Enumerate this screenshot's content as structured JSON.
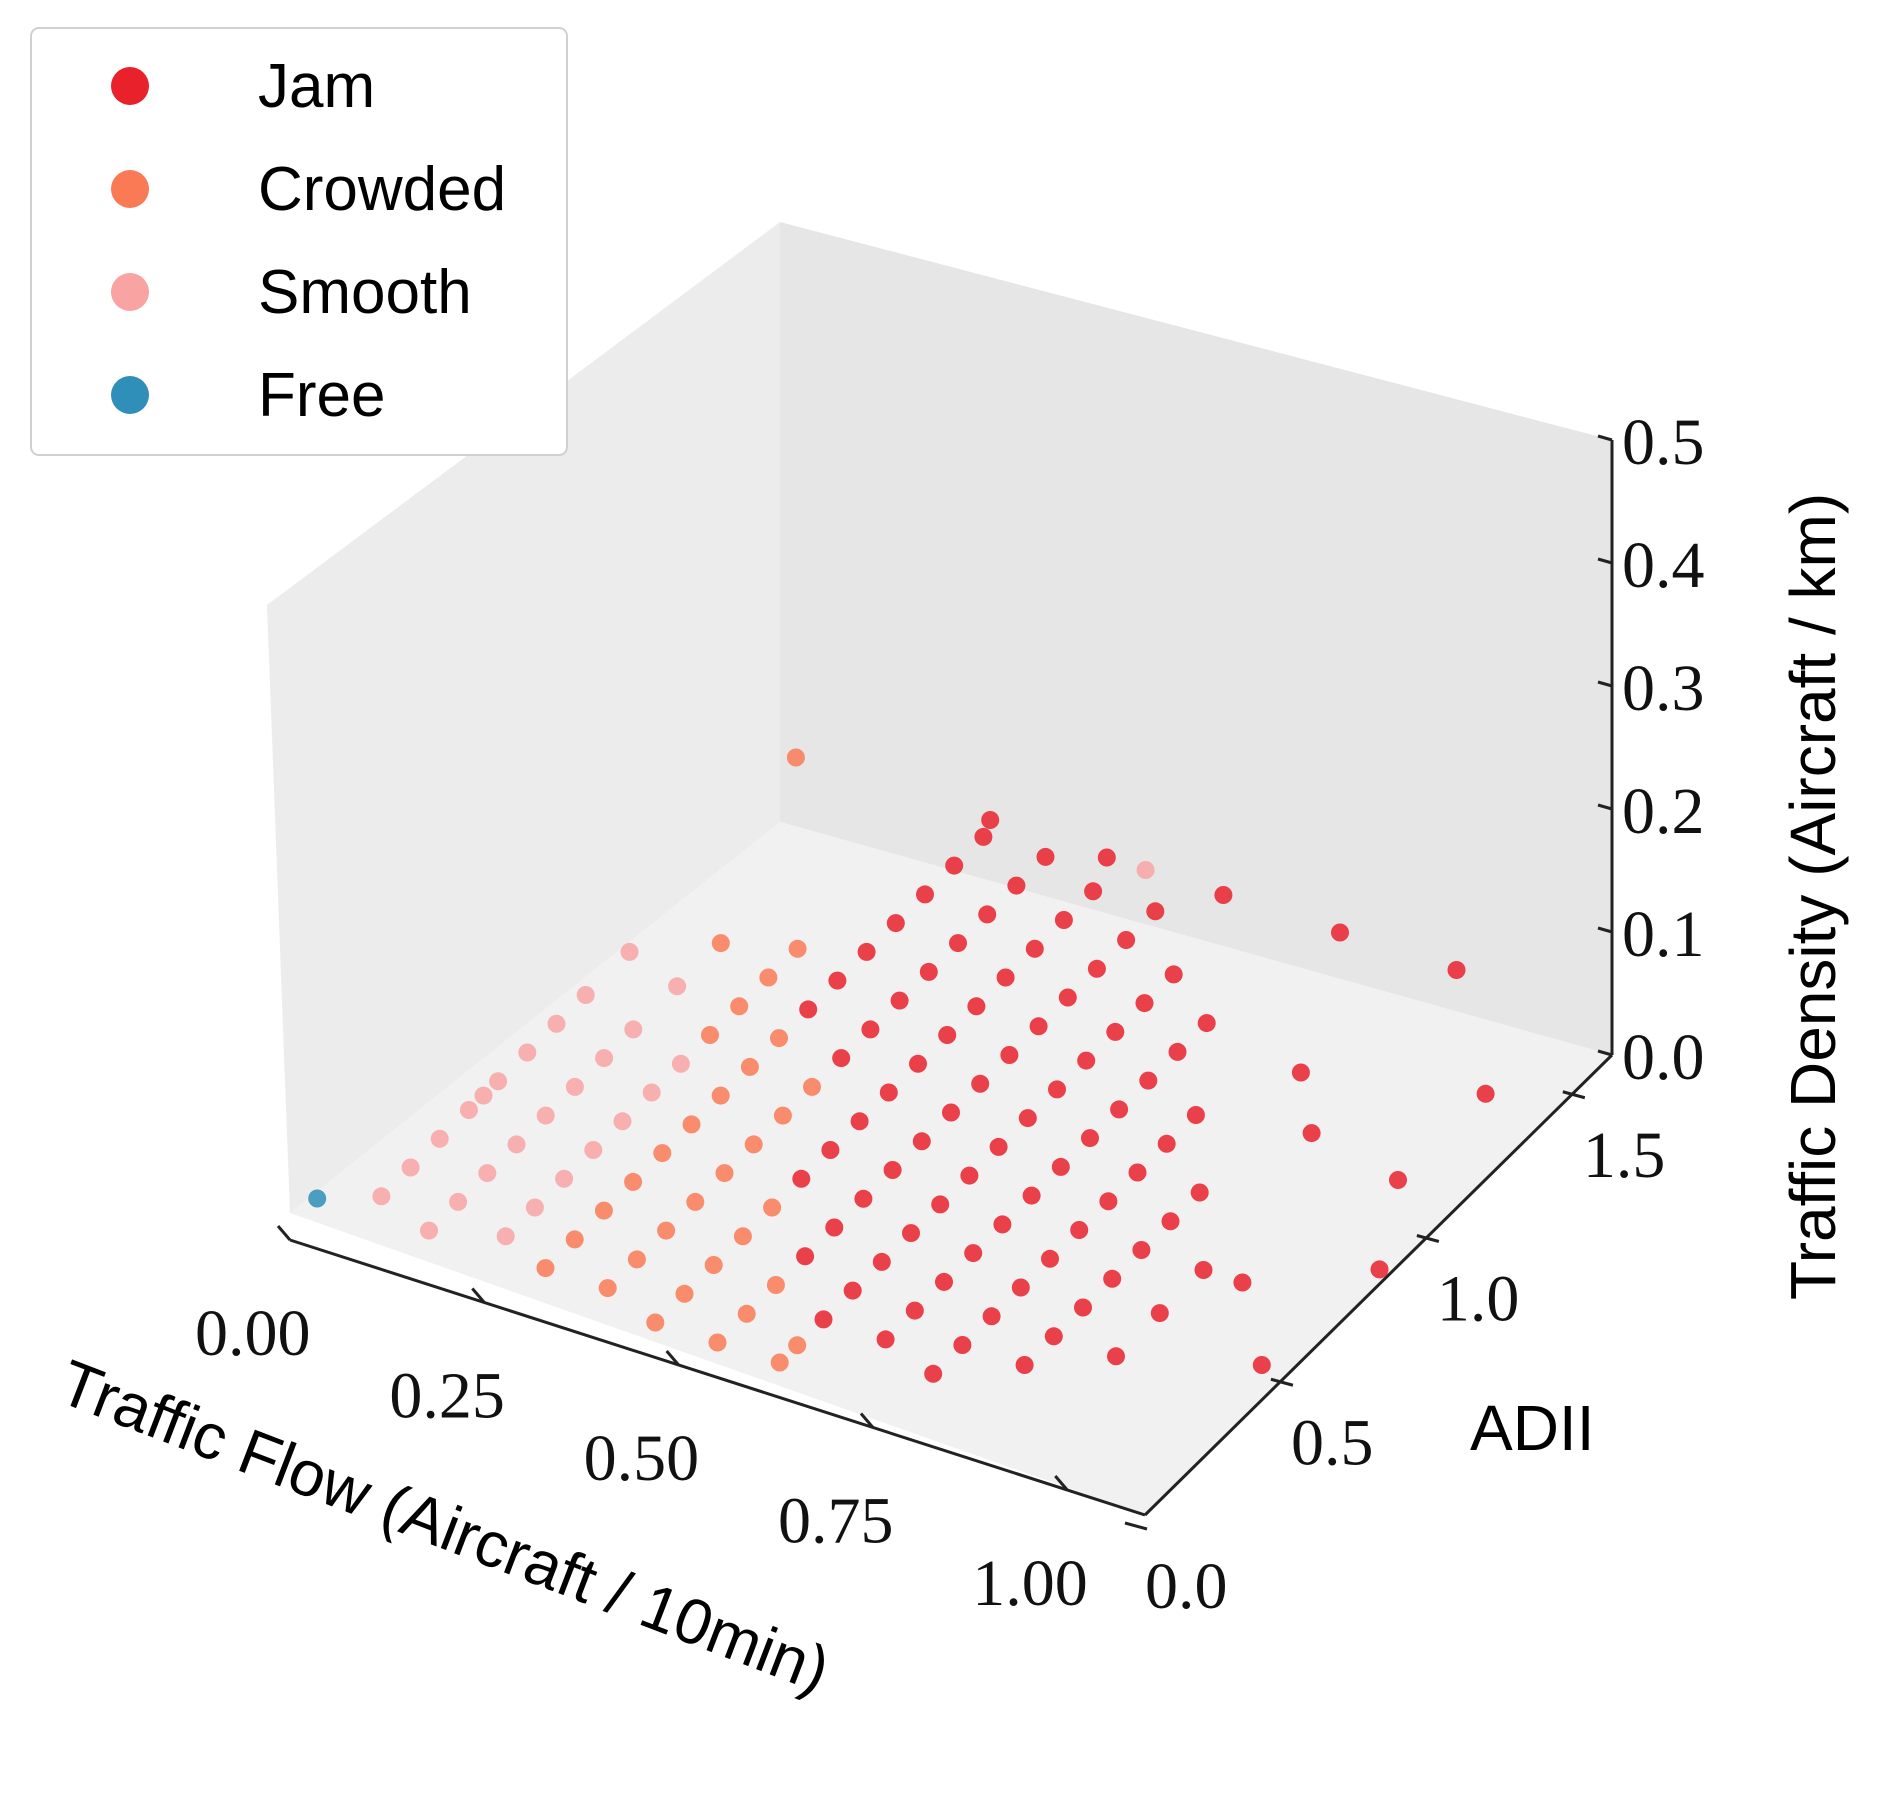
{
  "chart_data": {
    "type": "scatter",
    "projection": "3d",
    "title": "",
    "x_axis": {
      "label": "Traffic Flow  (Aircraft / 10min)",
      "range": [
        0,
        1.1
      ],
      "ticks": [
        0.0,
        0.25,
        0.5,
        0.75,
        1.0
      ],
      "tick_labels": [
        "0.00",
        "0.25",
        "0.50",
        "0.75",
        "1.00"
      ]
    },
    "y_axis": {
      "label": "ADII",
      "range": [
        0,
        1.6
      ],
      "ticks": [
        0.0,
        0.5,
        1.0,
        1.5
      ],
      "tick_labels": [
        "0.0",
        "0.5",
        "1.0",
        "1.5"
      ]
    },
    "z_axis": {
      "label": "Traffic Density  (Aircraft / km)",
      "range": [
        0,
        0.5
      ],
      "ticks": [
        0.0,
        0.1,
        0.2,
        0.3,
        0.4,
        0.5
      ],
      "tick_labels": [
        "0.0",
        "0.1",
        "0.2",
        "0.3",
        "0.4",
        "0.5"
      ]
    },
    "legend": {
      "position": "top-left",
      "entries": [
        {
          "name": "Jam",
          "color": "#e8212b"
        },
        {
          "name": "Crowded",
          "color": "#f97a55"
        },
        {
          "name": "Smooth",
          "color": "#f9a3a3"
        },
        {
          "name": "Free",
          "color": "#2f8fb8"
        }
      ]
    },
    "series": [
      {
        "name": "Free",
        "color": "#2f8fb8",
        "points": [
          [
            0.02,
            0.04,
            0.0
          ]
        ]
      },
      {
        "name": "Smooth",
        "color": "#f9a3a3",
        "points": [
          [
            0.08,
            0.1,
            0.0
          ],
          [
            0.08,
            0.2,
            0.0
          ],
          [
            0.08,
            0.3,
            0.0
          ],
          [
            0.08,
            0.4,
            0.0
          ],
          [
            0.08,
            0.5,
            0.0
          ],
          [
            0.08,
            0.6,
            0.0
          ],
          [
            0.08,
            0.7,
            0.0
          ],
          [
            0.08,
            0.8,
            0.0
          ],
          [
            0.08,
            0.45,
            0.0
          ],
          [
            0.16,
            0.05,
            0.0
          ],
          [
            0.16,
            0.15,
            0.0
          ],
          [
            0.16,
            0.25,
            0.0
          ],
          [
            0.16,
            0.35,
            0.0
          ],
          [
            0.16,
            0.45,
            0.0
          ],
          [
            0.16,
            0.55,
            0.0
          ],
          [
            0.16,
            0.65,
            0.0
          ],
          [
            0.16,
            0.75,
            0.0
          ],
          [
            0.24,
            0.1,
            0.0
          ],
          [
            0.24,
            0.2,
            0.0
          ],
          [
            0.24,
            0.3,
            0.0
          ],
          [
            0.24,
            0.4,
            0.0
          ],
          [
            0.24,
            0.5,
            0.0
          ],
          [
            0.24,
            0.6,
            0.0
          ],
          [
            0.24,
            0.7,
            0.0
          ],
          [
            0.08,
            0.95,
            0.0
          ],
          [
            0.16,
            0.9,
            0.0
          ],
          [
            0.5,
            1.6,
            0.0
          ]
        ]
      },
      {
        "name": "Crowded",
        "color": "#f97a55",
        "points": [
          [
            0.24,
            0.8,
            0.0
          ],
          [
            0.24,
            0.9,
            0.0
          ],
          [
            0.24,
            1.0,
            0.0
          ],
          [
            0.24,
            1.1,
            0.0
          ],
          [
            0.31,
            0.05,
            0.0
          ],
          [
            0.31,
            0.15,
            0.0
          ],
          [
            0.31,
            0.25,
            0.0
          ],
          [
            0.31,
            0.35,
            0.0
          ],
          [
            0.31,
            0.45,
            0.0
          ],
          [
            0.31,
            0.55,
            0.0
          ],
          [
            0.31,
            0.65,
            0.0
          ],
          [
            0.31,
            0.75,
            0.0
          ],
          [
            0.31,
            0.85,
            0.0
          ],
          [
            0.39,
            0.05,
            0.0
          ],
          [
            0.39,
            0.15,
            0.0
          ],
          [
            0.39,
            0.25,
            0.0
          ],
          [
            0.39,
            0.35,
            0.0
          ],
          [
            0.39,
            0.45,
            0.0
          ],
          [
            0.39,
            0.55,
            0.0
          ],
          [
            0.39,
            0.65,
            0.0
          ],
          [
            0.39,
            0.75,
            0.0
          ],
          [
            0.47,
            0.0,
            0.0
          ],
          [
            0.47,
            0.1,
            0.0
          ],
          [
            0.47,
            0.2,
            0.0
          ],
          [
            0.47,
            0.3,
            0.0
          ],
          [
            0.47,
            0.4,
            0.0
          ],
          [
            0.55,
            0.0,
            0.0
          ],
          [
            0.55,
            0.1,
            0.0
          ],
          [
            0.55,
            0.2,
            0.0
          ],
          [
            0.63,
            0.0,
            0.0
          ],
          [
            0.63,
            0.06,
            0.0
          ],
          [
            0.05,
            1.6,
            0.0
          ],
          [
            0.16,
            1.05,
            0.0
          ]
        ]
      },
      {
        "name": "Jam",
        "color": "#e8212b",
        "points": [
          [
            0.31,
            0.95,
            0.0
          ],
          [
            0.31,
            1.05,
            0.0
          ],
          [
            0.31,
            1.15,
            0.0
          ],
          [
            0.31,
            1.25,
            0.0
          ],
          [
            0.31,
            1.35,
            0.0
          ],
          [
            0.31,
            1.45,
            0.0
          ],
          [
            0.31,
            1.55,
            0.0
          ],
          [
            0.39,
            0.85,
            0.0
          ],
          [
            0.39,
            0.95,
            0.0
          ],
          [
            0.39,
            1.05,
            0.0
          ],
          [
            0.39,
            1.15,
            0.0
          ],
          [
            0.39,
            1.25,
            0.0
          ],
          [
            0.39,
            1.35,
            0.0
          ],
          [
            0.39,
            1.45,
            0.0
          ],
          [
            0.39,
            1.55,
            0.0
          ],
          [
            0.47,
            0.5,
            0.0
          ],
          [
            0.47,
            0.6,
            0.0
          ],
          [
            0.47,
            0.7,
            0.0
          ],
          [
            0.47,
            0.8,
            0.0
          ],
          [
            0.47,
            0.9,
            0.0
          ],
          [
            0.47,
            1.0,
            0.0
          ],
          [
            0.47,
            1.1,
            0.0
          ],
          [
            0.47,
            1.2,
            0.0
          ],
          [
            0.47,
            1.3,
            0.0
          ],
          [
            0.47,
            1.4,
            0.0
          ],
          [
            0.47,
            1.5,
            0.0
          ],
          [
            0.55,
            0.3,
            0.0
          ],
          [
            0.55,
            0.4,
            0.0
          ],
          [
            0.55,
            0.5,
            0.0
          ],
          [
            0.55,
            0.6,
            0.0
          ],
          [
            0.55,
            0.7,
            0.0
          ],
          [
            0.55,
            0.8,
            0.0
          ],
          [
            0.55,
            0.9,
            0.0
          ],
          [
            0.55,
            1.0,
            0.0
          ],
          [
            0.55,
            1.1,
            0.0
          ],
          [
            0.55,
            1.2,
            0.0
          ],
          [
            0.55,
            1.3,
            0.0
          ],
          [
            0.55,
            1.4,
            0.0
          ],
          [
            0.55,
            1.5,
            0.0
          ],
          [
            0.63,
            0.15,
            0.0
          ],
          [
            0.63,
            0.25,
            0.0
          ],
          [
            0.63,
            0.35,
            0.0
          ],
          [
            0.63,
            0.45,
            0.0
          ],
          [
            0.63,
            0.55,
            0.0
          ],
          [
            0.63,
            0.65,
            0.0
          ],
          [
            0.63,
            0.75,
            0.0
          ],
          [
            0.63,
            0.85,
            0.0
          ],
          [
            0.63,
            0.95,
            0.0
          ],
          [
            0.63,
            1.05,
            0.0
          ],
          [
            0.63,
            1.15,
            0.0
          ],
          [
            0.63,
            1.25,
            0.0
          ],
          [
            0.63,
            1.35,
            0.0
          ],
          [
            0.71,
            0.15,
            0.0
          ],
          [
            0.71,
            0.25,
            0.0
          ],
          [
            0.71,
            0.35,
            0.0
          ],
          [
            0.71,
            0.45,
            0.0
          ],
          [
            0.71,
            0.55,
            0.0
          ],
          [
            0.71,
            0.65,
            0.0
          ],
          [
            0.71,
            0.75,
            0.0
          ],
          [
            0.71,
            0.85,
            0.0
          ],
          [
            0.71,
            0.95,
            0.0
          ],
          [
            0.71,
            1.05,
            0.0
          ],
          [
            0.71,
            1.15,
            0.0
          ],
          [
            0.71,
            1.25,
            0.0
          ],
          [
            0.79,
            0.1,
            0.0
          ],
          [
            0.79,
            0.2,
            0.0
          ],
          [
            0.79,
            0.3,
            0.0
          ],
          [
            0.79,
            0.4,
            0.0
          ],
          [
            0.79,
            0.5,
            0.0
          ],
          [
            0.79,
            0.6,
            0.0
          ],
          [
            0.79,
            0.7,
            0.0
          ],
          [
            0.79,
            0.8,
            0.0
          ],
          [
            0.79,
            0.9,
            0.0
          ],
          [
            0.79,
            1.0,
            0.0
          ],
          [
            0.87,
            0.2,
            0.0
          ],
          [
            0.87,
            0.3,
            0.0
          ],
          [
            0.87,
            0.4,
            0.0
          ],
          [
            0.87,
            0.5,
            0.0
          ],
          [
            0.87,
            0.6,
            0.0
          ],
          [
            0.87,
            0.7,
            0.0
          ],
          [
            0.87,
            0.8,
            0.0
          ],
          [
            0.95,
            0.3,
            0.0
          ],
          [
            0.95,
            0.45,
            0.0
          ],
          [
            0.95,
            0.6,
            0.0
          ],
          [
            0.3,
            1.6,
            0.0
          ],
          [
            0.45,
            1.6,
            0.0
          ],
          [
            0.6,
            1.6,
            0.0
          ],
          [
            0.75,
            1.6,
            0.0
          ],
          [
            0.9,
            1.6,
            0.0
          ],
          [
            1.05,
            1.3,
            0.0
          ],
          [
            1.05,
            1.0,
            0.0
          ],
          [
            1.12,
            0.75,
            0.0
          ],
          [
            0.85,
            1.2,
            0.0
          ],
          [
            0.92,
            1.05,
            0.0
          ],
          [
            1.0,
            0.6,
            0.0
          ],
          [
            1.1,
            0.4,
            0.0
          ]
        ]
      }
    ]
  }
}
